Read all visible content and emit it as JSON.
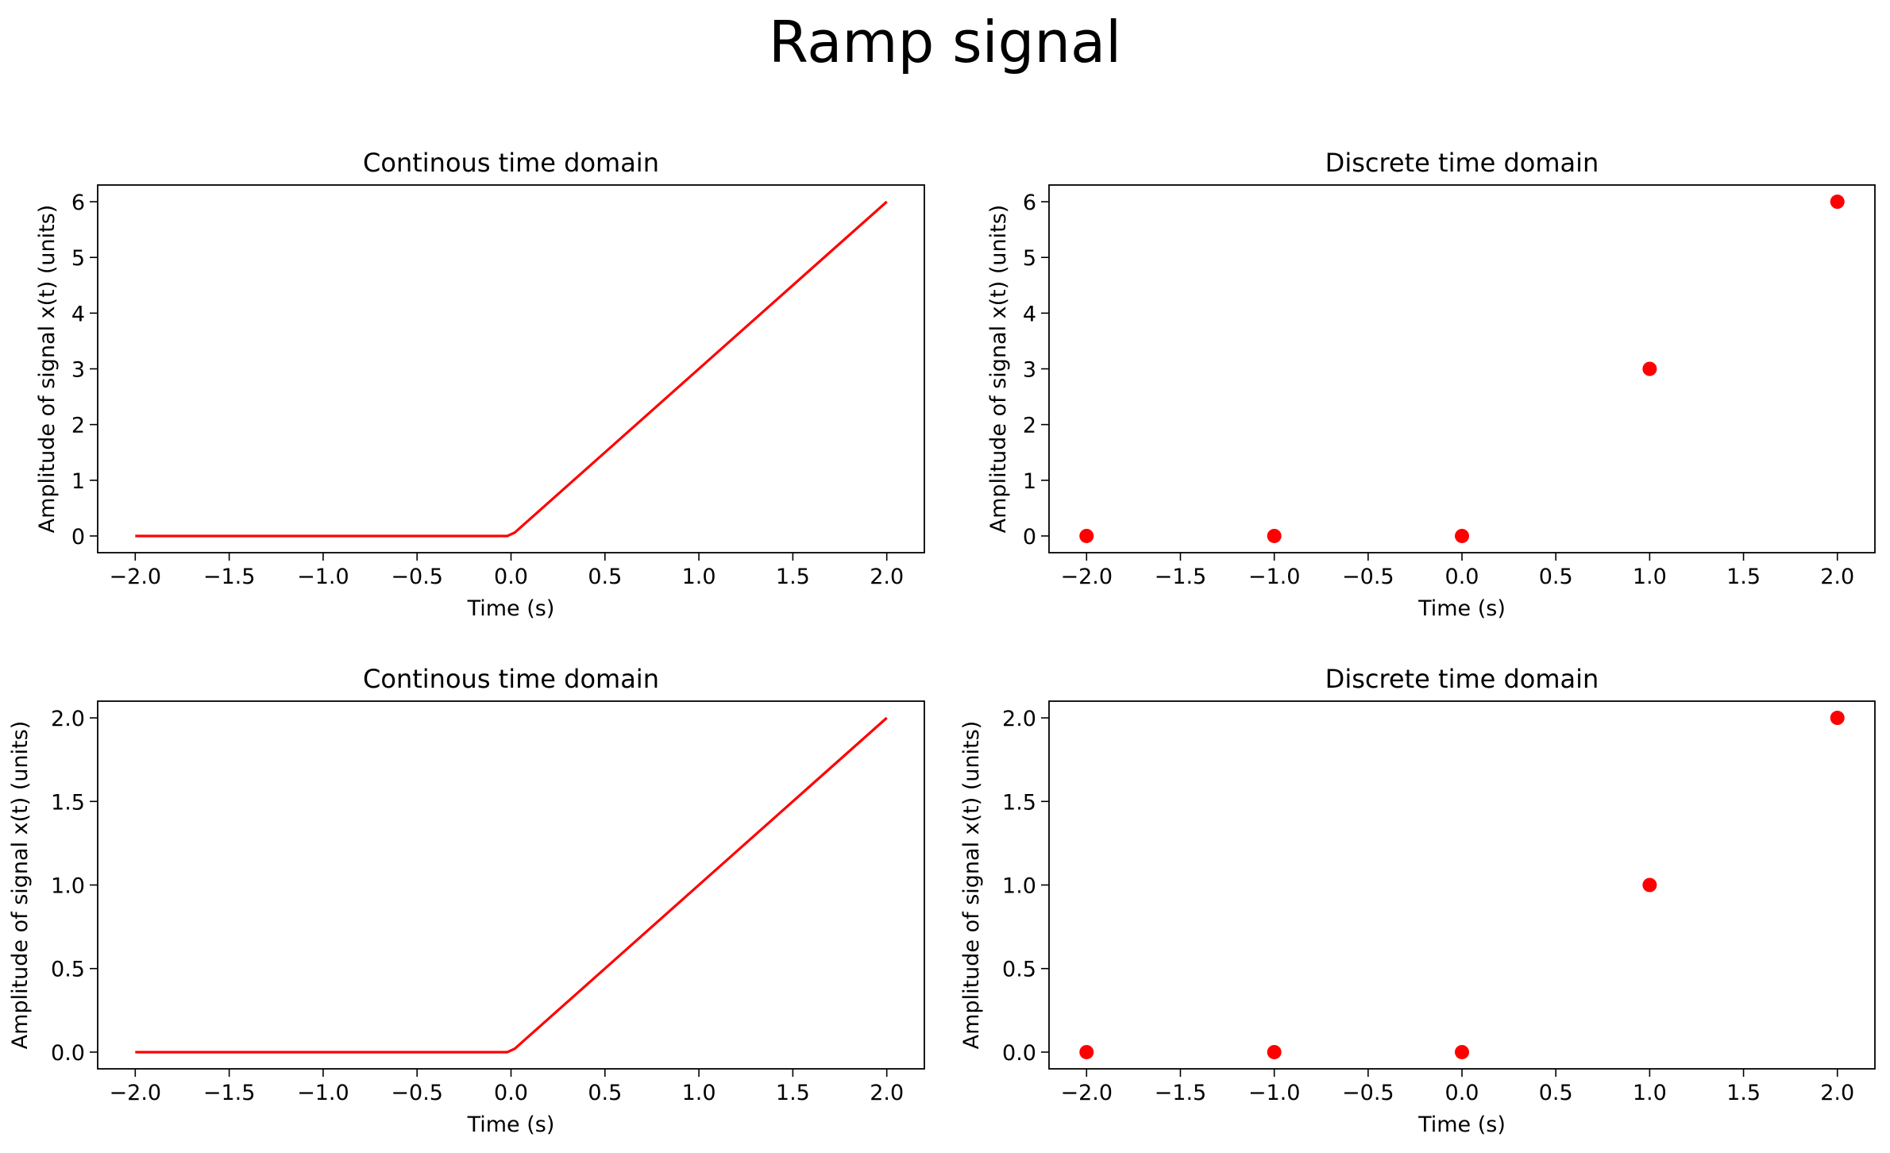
{
  "figure": {
    "title": "Ramp signal"
  },
  "chart_data": [
    {
      "type": "line",
      "title": "Continous time domain",
      "xlabel": "Time (s)",
      "ylabel": "Amplitude of signal x(t) (units)",
      "color": "#ff0000",
      "x": [
        -2.0,
        -0.02,
        0.02,
        2.0
      ],
      "y": [
        0,
        0,
        0.06,
        6
      ],
      "xlim": [
        -2.2,
        2.2
      ],
      "ylim": [
        -0.3,
        6.3
      ],
      "xticks": [
        -2.0,
        -1.5,
        -1.0,
        -0.5,
        0.0,
        0.5,
        1.0,
        1.5,
        2.0
      ],
      "xtick_labels": [
        "−2.0",
        "−1.5",
        "−1.0",
        "−0.5",
        "0.0",
        "0.5",
        "1.0",
        "1.5",
        "2.0"
      ],
      "yticks": [
        0,
        1,
        2,
        3,
        4,
        5,
        6
      ],
      "ytick_labels": [
        "0",
        "1",
        "2",
        "3",
        "4",
        "5",
        "6"
      ],
      "grid": false
    },
    {
      "type": "scatter",
      "title": "Discrete time domain",
      "xlabel": "Time (s)",
      "ylabel": "Amplitude of signal x(t) (units)",
      "color": "#ff0000",
      "x": [
        -2,
        -1,
        0,
        1,
        2
      ],
      "y": [
        0,
        0,
        0,
        3,
        6
      ],
      "xlim": [
        -2.2,
        2.2
      ],
      "ylim": [
        -0.3,
        6.3
      ],
      "xticks": [
        -2.0,
        -1.5,
        -1.0,
        -0.5,
        0.0,
        0.5,
        1.0,
        1.5,
        2.0
      ],
      "xtick_labels": [
        "−2.0",
        "−1.5",
        "−1.0",
        "−0.5",
        "0.0",
        "0.5",
        "1.0",
        "1.5",
        "2.0"
      ],
      "yticks": [
        0,
        1,
        2,
        3,
        4,
        5,
        6
      ],
      "ytick_labels": [
        "0",
        "1",
        "2",
        "3",
        "4",
        "5",
        "6"
      ],
      "grid": false
    },
    {
      "type": "line",
      "title": "Continous time domain",
      "xlabel": "Time (s)",
      "ylabel": "Amplitude of signal x(t) (units)",
      "color": "#ff0000",
      "x": [
        -2.0,
        -0.02,
        0.02,
        2.0
      ],
      "y": [
        0,
        0,
        0.02,
        2
      ],
      "xlim": [
        -2.2,
        2.2
      ],
      "ylim": [
        -0.1,
        2.1
      ],
      "xticks": [
        -2.0,
        -1.5,
        -1.0,
        -0.5,
        0.0,
        0.5,
        1.0,
        1.5,
        2.0
      ],
      "xtick_labels": [
        "−2.0",
        "−1.5",
        "−1.0",
        "−0.5",
        "0.0",
        "0.5",
        "1.0",
        "1.5",
        "2.0"
      ],
      "yticks": [
        0,
        0.5,
        1.0,
        1.5,
        2.0
      ],
      "ytick_labels": [
        "0.0",
        "0.5",
        "1.0",
        "1.5",
        "2.0"
      ],
      "grid": false
    },
    {
      "type": "scatter",
      "title": "Discrete time domain",
      "xlabel": "Time (s)",
      "ylabel": "Amplitude of signal x(t) (units)",
      "color": "#ff0000",
      "x": [
        -2,
        -1,
        0,
        1,
        2
      ],
      "y": [
        0,
        0,
        0,
        1,
        2
      ],
      "xlim": [
        -2.2,
        2.2
      ],
      "ylim": [
        -0.1,
        2.1
      ],
      "xticks": [
        -2.0,
        -1.5,
        -1.0,
        -0.5,
        0.0,
        0.5,
        1.0,
        1.5,
        2.0
      ],
      "xtick_labels": [
        "−2.0",
        "−1.5",
        "−1.0",
        "−0.5",
        "0.0",
        "0.5",
        "1.0",
        "1.5",
        "2.0"
      ],
      "yticks": [
        0,
        0.5,
        1.0,
        1.5,
        2.0
      ],
      "ytick_labels": [
        "0.0",
        "0.5",
        "1.0",
        "1.5",
        "2.0"
      ],
      "grid": false
    }
  ]
}
